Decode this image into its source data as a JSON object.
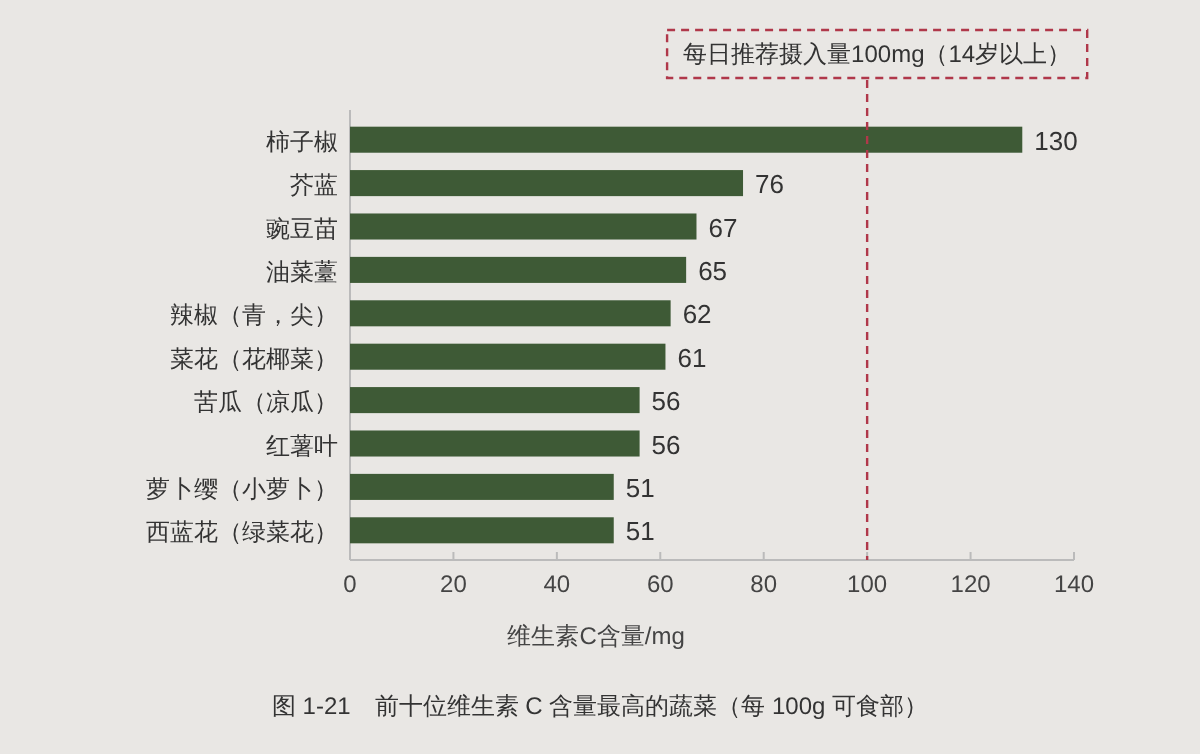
{
  "chart_data": {
    "type": "bar",
    "orientation": "horizontal",
    "categories": [
      "柿子椒",
      "芥蓝",
      "豌豆苗",
      "油菜薹",
      "辣椒（青，尖）",
      "菜花（花椰菜）",
      "苦瓜（凉瓜）",
      "红薯叶",
      "萝卜缨（小萝卜）",
      "西蓝花（绿菜花）"
    ],
    "values": [
      130,
      76,
      67,
      65,
      62,
      61,
      56,
      56,
      51,
      51
    ],
    "color": "#3e5a36",
    "data_labels": true,
    "grid": false,
    "xlabel": "维生素C含量/mg",
    "xlim": [
      0,
      140
    ],
    "xticks": [
      0,
      20,
      40,
      60,
      80,
      100,
      120,
      140
    ],
    "ref_lines": [
      {
        "axis": "x",
        "value": 100,
        "label": "每日推荐摄入量100mg（14岁以上）",
        "color": "#b0384a",
        "line_style": "dashed"
      }
    ],
    "annotations": [
      "图 1-21　前十位维生素 C 含量最高的蔬菜（每 100g 可食部）"
    ]
  }
}
